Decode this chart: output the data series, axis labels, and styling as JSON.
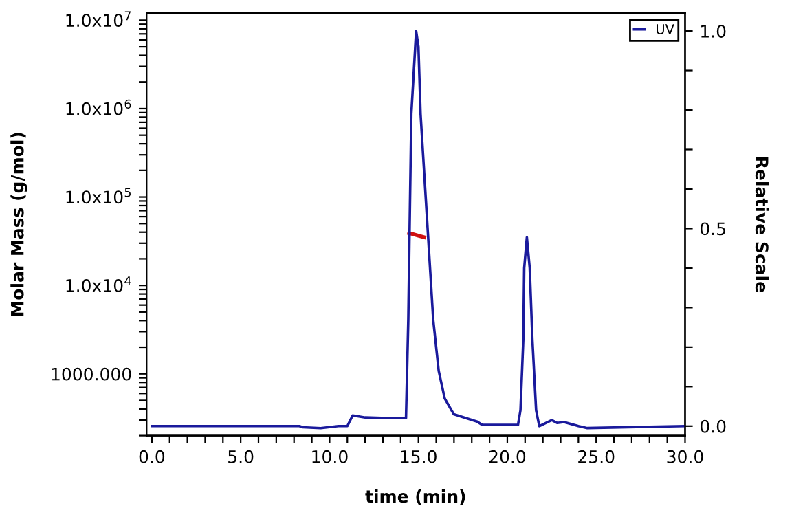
{
  "chart_data": {
    "type": "line",
    "xlabel": "time (min)",
    "ylabel": "Molar Mass (g/mol)",
    "y2label": "Relative Scale",
    "log": "y",
    "grid": false,
    "legend": "top right",
    "marker": "none",
    "line_style": "solid",
    "xlim": [
      -0.3,
      30.0
    ],
    "ylim": [
      200,
      12000000
    ],
    "y2lim": [
      -0.024,
      1.045
    ],
    "xticks": [
      {
        "value": 0,
        "label": "0.0"
      },
      {
        "value": 1,
        "label": null
      },
      {
        "value": 2,
        "label": null
      },
      {
        "value": 3,
        "label": null
      },
      {
        "value": 4,
        "label": null
      },
      {
        "value": 5,
        "label": "5.0"
      },
      {
        "value": 6,
        "label": null
      },
      {
        "value": 7,
        "label": null
      },
      {
        "value": 8,
        "label": null
      },
      {
        "value": 9,
        "label": null
      },
      {
        "value": 10,
        "label": "10.0"
      },
      {
        "value": 11,
        "label": null
      },
      {
        "value": 12,
        "label": null
      },
      {
        "value": 13,
        "label": null
      },
      {
        "value": 14,
        "label": null
      },
      {
        "value": 15,
        "label": "15.0"
      },
      {
        "value": 16,
        "label": null
      },
      {
        "value": 17,
        "label": null
      },
      {
        "value": 18,
        "label": null
      },
      {
        "value": 19,
        "label": null
      },
      {
        "value": 20,
        "label": "20.0"
      },
      {
        "value": 21,
        "label": null
      },
      {
        "value": 22,
        "label": null
      },
      {
        "value": 23,
        "label": null
      },
      {
        "value": 24,
        "label": null
      },
      {
        "value": 25,
        "label": "25.0"
      },
      {
        "value": 26,
        "label": null
      },
      {
        "value": 27,
        "label": null
      },
      {
        "value": 28,
        "label": null
      },
      {
        "value": 29,
        "label": null
      },
      {
        "value": 30,
        "label": "30.0"
      }
    ],
    "yticks": [
      {
        "value": 200,
        "label": null
      },
      {
        "value": 300,
        "label": null
      },
      {
        "value": 400,
        "label": null
      },
      {
        "value": 500,
        "label": null
      },
      {
        "value": 600,
        "label": null
      },
      {
        "value": 700,
        "label": null
      },
      {
        "value": 800,
        "label": null
      },
      {
        "value": 900,
        "label": null
      },
      {
        "value": 1000,
        "label": "1000.000"
      },
      {
        "value": 2000,
        "label": null
      },
      {
        "value": 3000,
        "label": null
      },
      {
        "value": 4000,
        "label": null
      },
      {
        "value": 5000,
        "label": null
      },
      {
        "value": 6000,
        "label": null
      },
      {
        "value": 7000,
        "label": null
      },
      {
        "value": 8000,
        "label": null
      },
      {
        "value": 9000,
        "label": null
      },
      {
        "value": 10000,
        "label": "1.0x10$^{4}$"
      },
      {
        "value": 20000,
        "label": null
      },
      {
        "value": 30000,
        "label": null
      },
      {
        "value": 40000,
        "label": null
      },
      {
        "value": 50000,
        "label": null
      },
      {
        "value": 60000,
        "label": null
      },
      {
        "value": 70000,
        "label": null
      },
      {
        "value": 80000,
        "label": null
      },
      {
        "value": 90000,
        "label": null
      },
      {
        "value": 100000,
        "label": "1.0x10$^{5}$"
      },
      {
        "value": 200000,
        "label": null
      },
      {
        "value": 300000,
        "label": null
      },
      {
        "value": 400000,
        "label": null
      },
      {
        "value": 500000,
        "label": null
      },
      {
        "value": 600000,
        "label": null
      },
      {
        "value": 700000,
        "label": null
      },
      {
        "value": 800000,
        "label": null
      },
      {
        "value": 900000,
        "label": null
      },
      {
        "value": 1000000,
        "label": "1.0x10$^{6}$"
      },
      {
        "value": 2000000,
        "label": null
      },
      {
        "value": 3000000,
        "label": null
      },
      {
        "value": 4000000,
        "label": null
      },
      {
        "value": 5000000,
        "label": null
      },
      {
        "value": 6000000,
        "label": null
      },
      {
        "value": 7000000,
        "label": null
      },
      {
        "value": 8000000,
        "label": null
      },
      {
        "value": 9000000,
        "label": null
      },
      {
        "value": 10000000,
        "label": "1.0x10$^{7}$"
      }
    ],
    "y2ticks": [
      {
        "value": 0,
        "label": "0.0"
      },
      {
        "value": 0.1,
        "label": null
      },
      {
        "value": 0.2,
        "label": null
      },
      {
        "value": 0.3,
        "label": null
      },
      {
        "value": 0.4,
        "label": null
      },
      {
        "value": 0.5,
        "label": "0.5"
      },
      {
        "value": 0.6,
        "label": null
      },
      {
        "value": 0.7,
        "label": null
      },
      {
        "value": 0.8,
        "label": null
      },
      {
        "value": 0.9,
        "label": null
      },
      {
        "value": 1.0,
        "label": "1.0"
      }
    ],
    "series": [
      {
        "name": "UV",
        "color": "#1a1a9c",
        "axis": "y2",
        "x": [
          0,
          8.3,
          8.5,
          9.5,
          10.5,
          11.0,
          11.3,
          12.0,
          13.5,
          14.2,
          14.3,
          14.43,
          14.5,
          14.6,
          14.87,
          15.0,
          15.12,
          15.53,
          15.83,
          16.14,
          16.48,
          16.99,
          18.27,
          18.6,
          20.6,
          20.74,
          20.9,
          20.95,
          21.1,
          21.26,
          21.41,
          21.62,
          21.8,
          22.5,
          22.8,
          23.2,
          24.0,
          24.5,
          30.0
        ],
        "values": [
          0,
          0,
          -0.003,
          -0.005,
          0,
          0,
          0.027,
          0.022,
          0.02,
          0.02,
          0.02,
          0.27,
          0.49,
          0.79,
          1.0,
          0.96,
          0.79,
          0.49,
          0.27,
          0.14,
          0.07,
          0.03,
          0.012,
          0.003,
          0.003,
          0.04,
          0.22,
          0.4,
          0.478,
          0.4,
          0.22,
          0.04,
          0.0,
          0.015,
          0.008,
          0.01,
          0.0,
          -0.005,
          0
        ]
      },
      {
        "color": "#d01010",
        "x": [
          14.48,
          14.7,
          15.0,
          15.33
        ],
        "values": [
          39000,
          38000,
          36500,
          35000
        ]
      }
    ]
  }
}
